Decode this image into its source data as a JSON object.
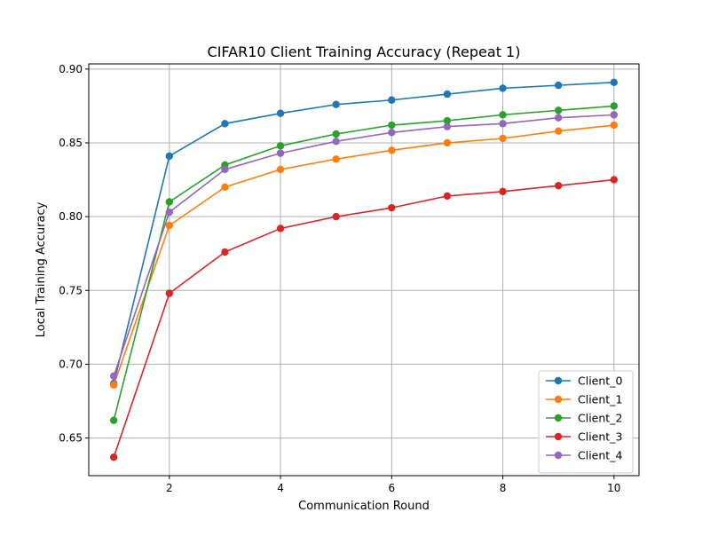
{
  "chart_data": {
    "type": "line",
    "title": "CIFAR10 Client Training Accuracy (Repeat 1)",
    "xlabel": "Communication Round",
    "ylabel": "Local Training Accuracy",
    "x": [
      1,
      2,
      3,
      4,
      5,
      6,
      7,
      8,
      9,
      10
    ],
    "xlim": [
      0.55,
      10.45
    ],
    "ylim": [
      0.6245,
      0.9035
    ],
    "xticks": [
      2,
      4,
      6,
      8,
      10
    ],
    "xtick_labels": [
      "2",
      "4",
      "6",
      "8",
      "10"
    ],
    "yticks": [
      0.65,
      0.7,
      0.75,
      0.8,
      0.85,
      0.9
    ],
    "ytick_labels": [
      "0.65",
      "0.70",
      "0.75",
      "0.80",
      "0.85",
      "0.90"
    ],
    "grid": true,
    "legend_position": "lower-right",
    "marker": "circle",
    "series": [
      {
        "name": "Client_0",
        "color": "#1f77b4",
        "values": [
          0.687,
          0.841,
          0.863,
          0.87,
          0.876,
          0.879,
          0.883,
          0.887,
          0.889,
          0.891
        ]
      },
      {
        "name": "Client_1",
        "color": "#ff7f0e",
        "values": [
          0.686,
          0.794,
          0.82,
          0.832,
          0.839,
          0.845,
          0.85,
          0.853,
          0.858,
          0.862
        ]
      },
      {
        "name": "Client_2",
        "color": "#2ca02c",
        "values": [
          0.662,
          0.81,
          0.835,
          0.848,
          0.856,
          0.862,
          0.865,
          0.869,
          0.872,
          0.875
        ]
      },
      {
        "name": "Client_3",
        "color": "#d62728",
        "values": [
          0.637,
          0.748,
          0.776,
          0.792,
          0.8,
          0.806,
          0.814,
          0.817,
          0.821,
          0.825
        ]
      },
      {
        "name": "Client_4",
        "color": "#9467bd",
        "values": [
          0.692,
          0.803,
          0.832,
          0.843,
          0.851,
          0.857,
          0.861,
          0.863,
          0.867,
          0.869
        ]
      }
    ]
  }
}
